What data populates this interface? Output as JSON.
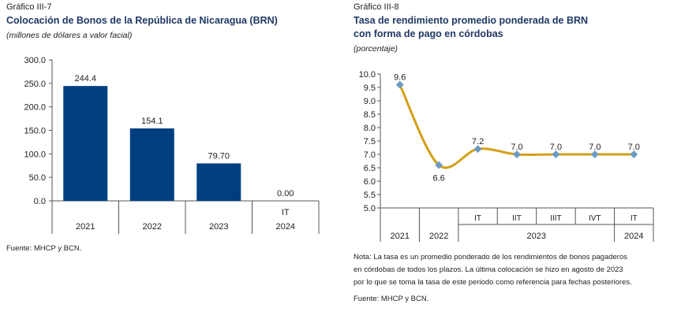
{
  "left": {
    "label": "Gráfico III-7",
    "title": "Colocación de Bonos de la República de Nicaragua (BRN)",
    "subtitle": "(millones de dólares a valor facial)",
    "source": "Fuente: MHCP y BCN."
  },
  "right": {
    "label": "Gráfico III-8",
    "title_line1": "Tasa de rendimiento promedio ponderada de BRN",
    "title_line2": "con forma de pago en córdobas",
    "subtitle": "(porcentaje)",
    "note_line1": "Nota:  La tasa es un promedio ponderado de los rendimientos de bonos pagaderos",
    "note_line2": "en córdobas de todos los plazos. La última colocación se hizo en agosto de 2023",
    "note_line3": "por lo que se toma la tasa de este periodo como referencia para fechas posteriores.",
    "source": "Fuente: MHCP y BCN."
  },
  "chart_data": [
    {
      "type": "bar",
      "categories": [
        "2021",
        "2022",
        "2023",
        "2024"
      ],
      "category_sublabels": [
        "",
        "",
        "",
        "IT"
      ],
      "values": [
        244.4,
        154.1,
        79.7,
        0.0
      ],
      "data_labels": [
        "244.4",
        "154.1",
        "79.70",
        "0.00"
      ],
      "ylim": [
        0,
        300
      ],
      "yticks": [
        "0.0",
        "50.0",
        "100.0",
        "150.0",
        "200.0",
        "250.0",
        "300.0"
      ],
      "yticks_values": [
        0,
        50,
        100,
        150,
        200,
        250,
        300
      ],
      "bar_color": "#003f7f",
      "grid": false
    },
    {
      "type": "line",
      "x": [
        "2021",
        "2022",
        "IT 2023",
        "IIT 2023",
        "IIIT 2023",
        "IVT 2023",
        "IT 2024"
      ],
      "quarter_labels": [
        "",
        "",
        "IT",
        "IIT",
        "IIIT",
        "IVT",
        "IT"
      ],
      "year_labels": [
        "2021",
        "2022",
        "2023",
        "2024"
      ],
      "values": [
        9.6,
        6.6,
        7.2,
        7.0,
        7.0,
        7.0,
        7.0
      ],
      "data_labels": [
        "9.6",
        "6.6",
        "7.2",
        "7.0",
        "7.0",
        "7.0",
        "7.0"
      ],
      "ylim": [
        5.0,
        10.0
      ],
      "yticks": [
        "5.0",
        "5.5",
        "6.0",
        "6.5",
        "7.0",
        "7.5",
        "8.0",
        "8.5",
        "9.0",
        "9.5",
        "10.0"
      ],
      "yticks_values": [
        5.0,
        5.5,
        6.0,
        6.5,
        7.0,
        7.5,
        8.0,
        8.5,
        9.0,
        9.5,
        10.0
      ],
      "line_color": "#d4a017",
      "marker_color": "#6b9bc3",
      "smooth": true,
      "grid": false
    }
  ]
}
